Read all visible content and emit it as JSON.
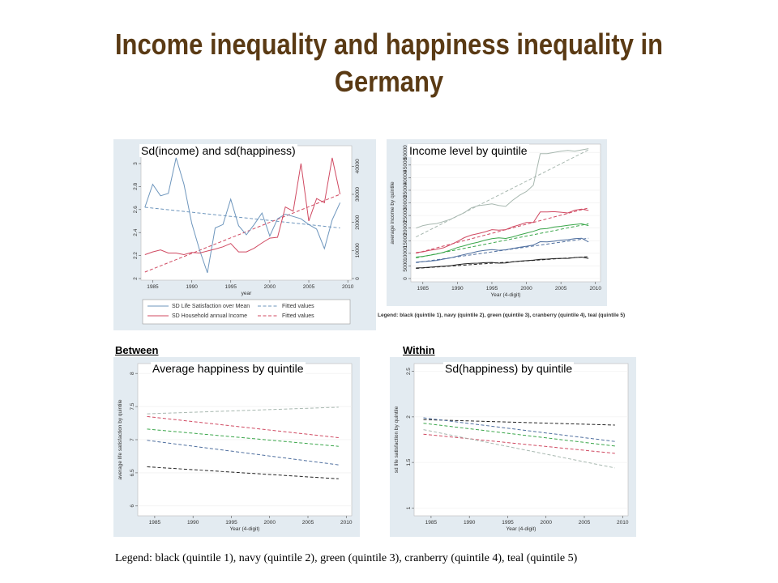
{
  "slide": {
    "title_line1": "Income inequality and happiness inequality in",
    "title_line2": "Germany",
    "legend_small": "Legend: black (quintile 1), navy (quintile 2), green (quintile 3), cranberry (quintile 4), teal (quintile 5)",
    "section_between": "Between",
    "section_within": "Within",
    "legend_bottom": "Legend: black (quintile 1), navy (quintile 2), green (quintile 3), cranberry (quintile 4), teal (quintile 5)"
  },
  "colors": {
    "title": "#5a3a14",
    "panel_bg": "#e3ebf1",
    "black": "#222222",
    "navy": "#4f6f9f",
    "green": "#3aa64a",
    "cranberry": "#d04a62",
    "teal": "#a8b8b0",
    "blue_sd": "#6e96bd"
  },
  "chart_data": [
    {
      "type": "line",
      "title": "Sd(income) and sd(happiness)",
      "xlabel": "year",
      "x": [
        1984,
        1985,
        1986,
        1987,
        1988,
        1989,
        1990,
        1991,
        1992,
        1993,
        1994,
        1995,
        1996,
        1997,
        1998,
        1999,
        2000,
        2001,
        2002,
        2003,
        2004,
        2005,
        2006,
        2007,
        2008,
        2009
      ],
      "x_ticks": [
        "1985",
        "1990",
        "1995",
        "2000",
        "2005",
        "2010"
      ],
      "xlim": [
        1983.5,
        2010.5
      ],
      "ylim_left": [
        2,
        3
      ],
      "y_ticks_left": [
        "2",
        "2.2",
        "2.4",
        "2.6",
        "2.8",
        "3"
      ],
      "ylim_right": [
        0,
        45000
      ],
      "y_ticks_right": [
        "0",
        "10000",
        "20000",
        "30000",
        "40000"
      ],
      "series": [
        {
          "name": "SD Life Satisfaction over Mean",
          "axis": "left",
          "color": "#6e96bd",
          "values": [
            2.62,
            2.82,
            2.72,
            2.74,
            3.05,
            2.82,
            2.48,
            2.25,
            2.05,
            2.44,
            2.47,
            2.69,
            2.46,
            2.38,
            2.47,
            2.57,
            2.37,
            2.52,
            2.56,
            2.54,
            2.52,
            2.47,
            2.43,
            2.26,
            2.51,
            2.66
          ]
        },
        {
          "name": "SD Household annual Income",
          "axis": "right",
          "color": "#d04a62",
          "values": [
            8500,
            9500,
            10200,
            9100,
            9100,
            8500,
            9300,
            9100,
            9800,
            10500,
            11300,
            12500,
            9500,
            9500,
            10800,
            12700,
            14400,
            14700,
            25500,
            24000,
            41000,
            20500,
            28500,
            27000,
            43000,
            30000
          ]
        },
        {
          "name": "Fitted values",
          "axis": "left",
          "color": "#6e96bd",
          "dash": true,
          "values_at": {
            "1984": 2.62,
            "2009": 2.44
          }
        },
        {
          "name": "Fitted values",
          "axis": "right",
          "color": "#d04a62",
          "dash": true,
          "values_at": {
            "1984": 2300,
            "2009": 30000
          }
        }
      ],
      "legend": [
        "SD Life Satisfaction over Mean",
        "SD Household annual Income",
        "Fitted values",
        "Fitted values"
      ],
      "legend_position": "bottom"
    },
    {
      "type": "line",
      "title": "Income level by quintile",
      "xlabel": "Year (4-digit)",
      "ylabel": "average income by quintile",
      "x": [
        1984,
        1985,
        1986,
        1987,
        1988,
        1989,
        1990,
        1991,
        1992,
        1993,
        1994,
        1995,
        1996,
        1997,
        1998,
        1999,
        2000,
        2001,
        2002,
        2003,
        2004,
        2005,
        2006,
        2007,
        2008,
        2009
      ],
      "x_ticks": [
        "1985",
        "1990",
        "1995",
        "2000",
        "2005",
        "2010"
      ],
      "xlim": [
        1983.5,
        2010.5
      ],
      "ylim": [
        0,
        52000
      ],
      "y_ticks": [
        "0",
        "5000",
        "10000",
        "15000",
        "20000",
        "25000",
        "30000",
        "35000",
        "40000",
        "45000",
        "50000"
      ],
      "series": [
        {
          "name": "quintile 1",
          "color": "#222222",
          "values": [
            4200,
            4300,
            4500,
            4700,
            4900,
            5100,
            5500,
            5800,
            6000,
            6100,
            6300,
            6400,
            6100,
            6200,
            6600,
            6900,
            7100,
            7300,
            7600,
            7700,
            7900,
            8000,
            8000,
            8300,
            8500,
            8000
          ],
          "fit": [
            4000,
            8700
          ]
        },
        {
          "name": "quintile 2",
          "color": "#4f6f9f",
          "values": [
            6500,
            6700,
            6900,
            7200,
            7700,
            8200,
            8900,
            9500,
            10100,
            10800,
            11200,
            11500,
            11200,
            11400,
            11900,
            12400,
            12800,
            13300,
            14600,
            14500,
            14800,
            15200,
            15400,
            15800,
            16000,
            14500
          ],
          "fit": [
            6300,
            16000
          ]
        },
        {
          "name": "quintile 3",
          "color": "#3aa64a",
          "values": [
            8500,
            8800,
            9200,
            9700,
            10400,
            11300,
            12300,
            13000,
            13800,
            14400,
            15200,
            15800,
            16100,
            15900,
            16500,
            17300,
            18000,
            18700,
            19600,
            19800,
            20400,
            20700,
            21100,
            21400,
            21700,
            21000
          ],
          "fit": [
            8200,
            21700
          ]
        },
        {
          "name": "quintile 4",
          "color": "#d04a62",
          "values": [
            10300,
            10600,
            11200,
            11600,
            12200,
            13400,
            14700,
            16200,
            17200,
            17800,
            18500,
            19400,
            19200,
            19400,
            20500,
            21300,
            22200,
            22200,
            26400,
            26400,
            26500,
            26300,
            26000,
            27100,
            27500,
            27000
          ],
          "fit": [
            10000,
            28000
          ]
        },
        {
          "name": "quintile 5",
          "color": "#a8b8b0",
          "values": [
            20000,
            21000,
            21500,
            21800,
            22600,
            23500,
            24800,
            26100,
            28000,
            28900,
            29200,
            29600,
            29000,
            28600,
            31000,
            33000,
            34500,
            37000,
            49500,
            49500,
            50000,
            50500,
            50800,
            50500,
            51000,
            51500
          ],
          "fit": [
            16500,
            51000
          ]
        }
      ],
      "legend": "Legend: black (quintile 1), navy (quintile 2), green (quintile 3), cranberry (quintile 4), teal (quintile 5)"
    },
    {
      "type": "line",
      "title": "Average happiness by quintile",
      "xlabel": "Year (4-digit)",
      "ylabel": "average life satisfaction by quintile",
      "x_ticks": [
        "1985",
        "1990",
        "1995",
        "2000",
        "2005",
        "2010"
      ],
      "xlim": [
        1983,
        2010.5
      ],
      "ylim": [
        5.9,
        8.1
      ],
      "y_ticks": [
        "6",
        "6.5",
        "7",
        "7.5",
        "8"
      ],
      "series": [
        {
          "name": "quintile 1",
          "color": "#222222",
          "x": [
            1984,
            2009
          ],
          "values": [
            6.59,
            6.41
          ]
        },
        {
          "name": "quintile 2",
          "color": "#4f6f9f",
          "x": [
            1984,
            2009
          ],
          "values": [
            6.99,
            6.62
          ]
        },
        {
          "name": "quintile 3",
          "color": "#3aa64a",
          "x": [
            1984,
            2009
          ],
          "values": [
            7.16,
            6.9
          ]
        },
        {
          "name": "quintile 4",
          "color": "#d04a62",
          "x": [
            1984,
            2009
          ],
          "values": [
            7.35,
            7.03
          ]
        },
        {
          "name": "quintile 5",
          "color": "#a8b8b0",
          "x": [
            1984,
            2009
          ],
          "values": [
            7.39,
            7.49
          ]
        }
      ]
    },
    {
      "type": "line",
      "title": "Sd(happiness) by quintile",
      "xlabel": "Year (4-digit)",
      "ylabel": "sd life satisfaction by quintile",
      "x_ticks": [
        "1985",
        "1990",
        "1995",
        "2000",
        "2005",
        "2010"
      ],
      "xlim": [
        1983,
        2010.5
      ],
      "ylim": [
        0.95,
        2.55
      ],
      "y_ticks": [
        "1",
        "1.5",
        "2",
        "2.5"
      ],
      "series": [
        {
          "name": "quintile 1",
          "color": "#222222",
          "x": [
            1984,
            2009
          ],
          "values": [
            1.97,
            1.91
          ]
        },
        {
          "name": "quintile 2",
          "color": "#4f6f9f",
          "x": [
            1984,
            2009
          ],
          "values": [
            1.99,
            1.73
          ]
        },
        {
          "name": "quintile 3",
          "color": "#3aa64a",
          "x": [
            1984,
            2009
          ],
          "values": [
            1.93,
            1.68
          ]
        },
        {
          "name": "quintile 4",
          "color": "#d04a62",
          "x": [
            1984,
            2009
          ],
          "values": [
            1.81,
            1.6
          ]
        },
        {
          "name": "quintile 5",
          "color": "#a8b8b0",
          "x": [
            1984,
            2009
          ],
          "values": [
            1.86,
            1.44
          ]
        }
      ]
    }
  ]
}
